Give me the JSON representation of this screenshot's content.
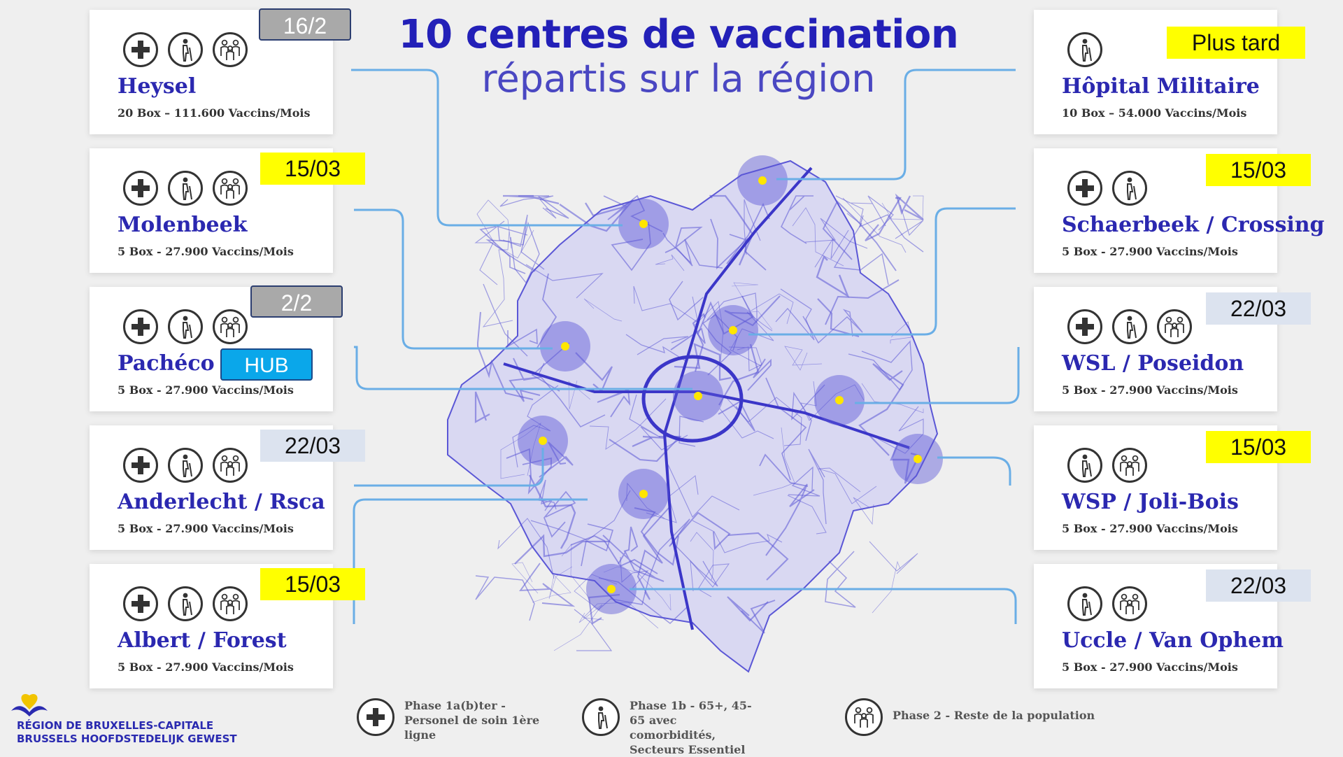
{
  "title": {
    "line1": "10 centres de vaccination",
    "line2": "répartis sur la région"
  },
  "colors": {
    "title": "#2320b8",
    "map": "#5b57d6",
    "yellow_badge": "#ffff00",
    "gray_badge": "#a9a9a9",
    "light_badge": "#dce3ef",
    "hub_badge": "#0aa7ea",
    "connector": "#6aaee6"
  },
  "centers_left": [
    {
      "name": "Heysel",
      "capacity": "20 Box – 111.600 Vaccins/Mois",
      "icons": [
        "cross-icon",
        "elderly-icon",
        "group-icon"
      ],
      "badge": "16/2",
      "badge_style": "gray"
    },
    {
      "name": "Molenbeek",
      "capacity": "5 Box - 27.900 Vaccins/Mois",
      "icons": [
        "cross-icon",
        "elderly-icon",
        "group-icon"
      ],
      "badge": "15/03",
      "badge_style": "yellow"
    },
    {
      "name": "Pachéco",
      "capacity": "5 Box - 27.900 Vaccins/Mois",
      "icons": [
        "cross-icon",
        "elderly-icon",
        "group-icon"
      ],
      "badge": "2/2",
      "badge_style": "gray",
      "hub": "HUB"
    },
    {
      "name": "Anderlecht / Rsca",
      "capacity": "5 Box - 27.900 Vaccins/Mois",
      "icons": [
        "cross-icon",
        "elderly-icon",
        "group-icon"
      ],
      "badge": "22/03",
      "badge_style": "light"
    },
    {
      "name": "Albert / Forest",
      "capacity": "5 Box - 27.900 Vaccins/Mois",
      "icons": [
        "cross-icon",
        "elderly-icon",
        "group-icon"
      ],
      "badge": "15/03",
      "badge_style": "yellow"
    }
  ],
  "centers_right": [
    {
      "name": "Hôpital Militaire",
      "capacity": "10 Box – 54.000 Vaccins/Mois",
      "icons": [
        "elderly-icon"
      ],
      "badge": "Plus tard",
      "badge_style": "yellow"
    },
    {
      "name": "Schaerbeek / Crossing",
      "capacity": "5 Box - 27.900 Vaccins/Mois",
      "icons": [
        "cross-icon",
        "elderly-icon"
      ],
      "badge": "15/03",
      "badge_style": "yellow"
    },
    {
      "name": "WSL / Poseidon",
      "capacity": "5 Box - 27.900 Vaccins/Mois",
      "icons": [
        "cross-icon",
        "elderly-icon",
        "group-icon"
      ],
      "badge": "22/03",
      "badge_style": "light"
    },
    {
      "name": "WSP / Joli-Bois",
      "capacity": "5 Box - 27.900 Vaccins/Mois",
      "icons": [
        "elderly-icon",
        "group-icon"
      ],
      "badge": "15/03",
      "badge_style": "yellow"
    },
    {
      "name": "Uccle / Van Ophem",
      "capacity": "5 Box - 27.900 Vaccins/Mois",
      "icons": [
        "elderly-icon",
        "group-icon"
      ],
      "badge": "22/03",
      "badge_style": "light"
    }
  ],
  "legend": {
    "cross": "Phase 1a(b)ter - Personel de soin 1ère ligne",
    "elderly": "Phase 1b - 65+, 45-65 avec comorbidités, Secteurs Essentiel",
    "group": "Phase 2 - Reste de la population"
  },
  "logo": {
    "line1": "RÉGION DE BRUXELLES-CAPITALE",
    "line2": "BRUSSELS HOOFDSTEDELIJK GEWEST"
  }
}
